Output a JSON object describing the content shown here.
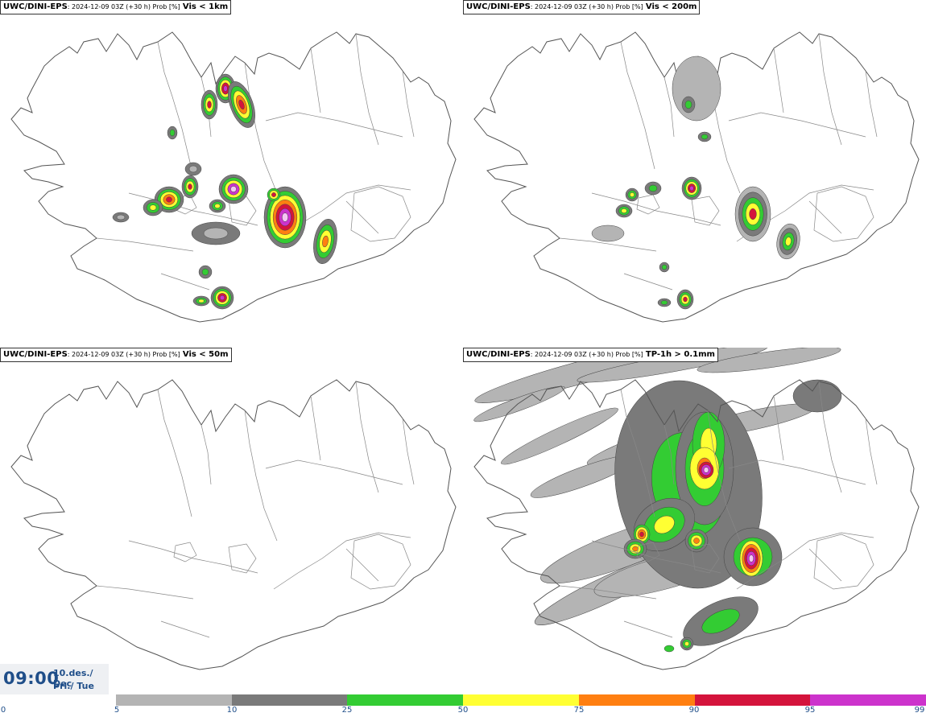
{
  "panels": [
    {
      "source": "UWC/DINI-EPS",
      "meta": ": 2024-12-09 03Z (+30 h) Prob [%]",
      "param": "Vis < 1km"
    },
    {
      "source": "UWC/DINI-EPS",
      "meta": ": 2024-12-09 03Z (+30 h) Prob [%]",
      "param": "Vis < 200m"
    },
    {
      "source": "UWC/DINI-EPS",
      "meta": ": 2024-12-09 03Z (+30 h) Prob [%]",
      "param": "Vis < 50m"
    },
    {
      "source": "UWC/DINI-EPS",
      "meta": ": 2024-12-09 03Z (+30 h) Prob [%]",
      "param": "TP-1h > 0.1mm"
    }
  ],
  "valid_time": {
    "time": "09:00",
    "date_line1": "10.des./ Dec",
    "date_line2": "Þri./ Tue"
  },
  "colorbar": {
    "ticks": [
      "0",
      "5",
      "10",
      "25",
      "50",
      "75",
      "90",
      "95",
      "99"
    ],
    "colors": [
      "#b4b4b4",
      "#7a7a7a",
      "#33cc33",
      "#ffff33",
      "#ff7f11",
      "#d4143c",
      "#cc33cc",
      "#f5c6f5"
    ]
  }
}
